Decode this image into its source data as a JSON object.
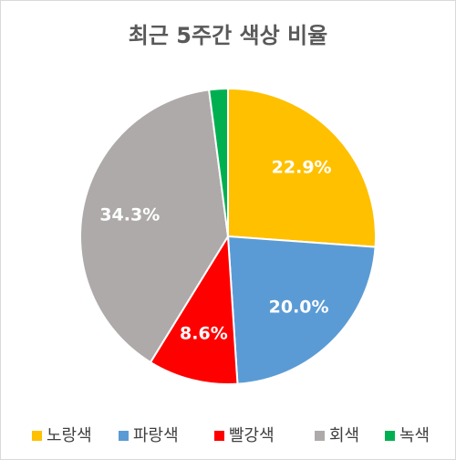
{
  "chart_data": {
    "type": "pie",
    "title": "최근 5주간 색상 비율",
    "categories": [
      "노랑색",
      "파랑색",
      "빨강색",
      "회색",
      "녹색"
    ],
    "values": [
      22.9,
      20.0,
      8.6,
      34.3,
      1.8
    ],
    "value_labels": [
      "22.9%",
      "20.0%",
      "8.6%",
      "34.3%",
      null
    ],
    "colors": [
      "#ffc000",
      "#5b9bd5",
      "#ff0000",
      "#aeaaaa",
      "#00b050"
    ],
    "legend": "bottom"
  }
}
